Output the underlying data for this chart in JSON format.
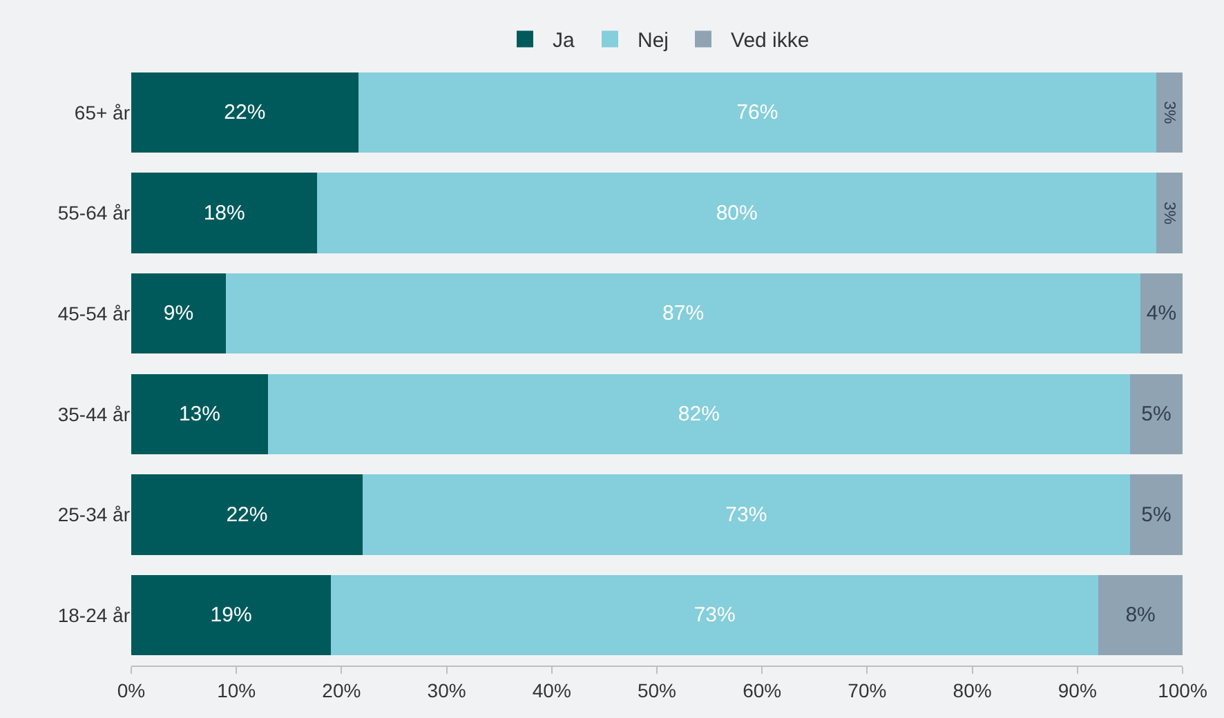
{
  "chart_data": {
    "type": "bar",
    "orientation": "horizontal",
    "stacked": true,
    "categories": [
      "65+ år",
      "55-64 år",
      "45-54 år",
      "35-44 år",
      "25-34 år",
      "18-24 år"
    ],
    "series": [
      {
        "name": "Ja",
        "color": "#005a5b",
        "values": [
          21.6,
          17.7,
          9,
          13,
          22,
          19
        ],
        "value_labels": [
          "22%",
          "18%",
          "9%",
          "13%",
          "22%",
          "19%"
        ]
      },
      {
        "name": "Nej",
        "color": "#85cedb",
        "values": [
          75.9,
          79.8,
          87,
          82,
          73,
          73
        ],
        "value_labels": [
          "76%",
          "80%",
          "87%",
          "82%",
          "73%",
          "73%"
        ]
      },
      {
        "name": "Ved ikke",
        "color": "#8fa3b3",
        "values": [
          2.5,
          2.5,
          4,
          5,
          5,
          8
        ],
        "value_labels": [
          "3%",
          "3%",
          "4%",
          "5%",
          "5%",
          "8%"
        ]
      }
    ],
    "xlim": [
      0,
      100
    ],
    "xticks": [
      {
        "value": 0,
        "label": "0%"
      },
      {
        "value": 10,
        "label": "10%"
      },
      {
        "value": 20,
        "label": "20%"
      },
      {
        "value": 30,
        "label": "30%"
      },
      {
        "value": 40,
        "label": "40%"
      },
      {
        "value": 50,
        "label": "50%"
      },
      {
        "value": 60,
        "label": "60%"
      },
      {
        "value": 70,
        "label": "70%"
      },
      {
        "value": 80,
        "label": "80%"
      },
      {
        "value": 90,
        "label": "90%"
      },
      {
        "value": 100,
        "label": "100%"
      }
    ],
    "legend": "top",
    "grid": false
  }
}
